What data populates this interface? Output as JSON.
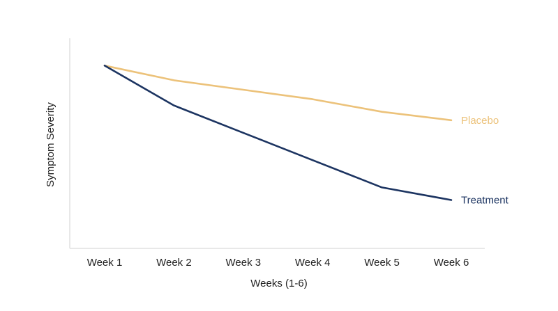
{
  "chart_data": {
    "type": "line",
    "title": "",
    "xlabel": "Weeks (1-6)",
    "ylabel": "Symptom Severity",
    "categories": [
      "Week 1",
      "Week 2",
      "Week 3",
      "Week 4",
      "Week 5",
      "Week 6"
    ],
    "ylim": [
      0,
      100
    ],
    "grid": false,
    "legend": "inline-right",
    "series": [
      {
        "name": "Placebo",
        "color": "#ecc27a",
        "values": [
          87,
          80,
          75.5,
          71,
          65,
          61
        ]
      },
      {
        "name": "Treatment",
        "color": "#1c3461",
        "values": [
          87,
          68,
          55,
          42,
          29,
          23
        ]
      }
    ]
  }
}
